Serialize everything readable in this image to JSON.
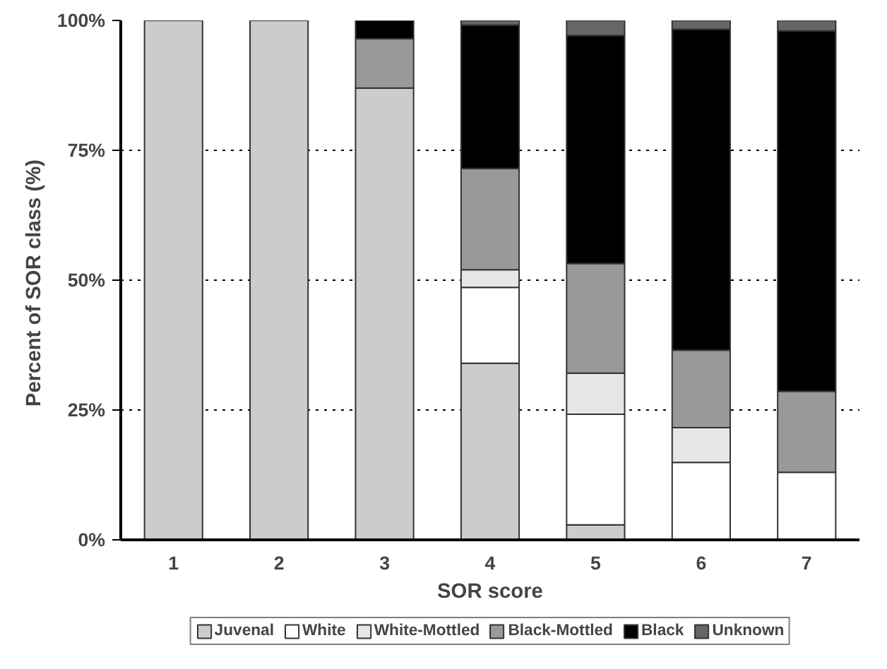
{
  "chart_data": {
    "type": "bar",
    "stacked": true,
    "xlabel": "SOR score",
    "ylabel": "Percent  of SOR class (%)",
    "categories": [
      "1",
      "2",
      "3",
      "4",
      "5",
      "6",
      "7"
    ],
    "series": [
      {
        "name": "Juvenal",
        "color": "#cccccc",
        "values": [
          100,
          100,
          87,
          34,
          2.9,
          0,
          0
        ]
      },
      {
        "name": "White",
        "color": "#ffffff",
        "values": [
          0,
          0,
          0,
          14.6,
          21.3,
          14.9,
          13
        ]
      },
      {
        "name": "White-Mottled",
        "color": "#e6e6e6",
        "values": [
          0,
          0,
          0,
          3.4,
          7.9,
          6.7,
          0
        ]
      },
      {
        "name": "Black-Mottled",
        "color": "#999999",
        "values": [
          0,
          0,
          9.5,
          19.5,
          21.1,
          14.9,
          15.6
        ]
      },
      {
        "name": "Black",
        "color": "#000000",
        "values": [
          0,
          0,
          3.5,
          27.6,
          43.9,
          61.8,
          69.4
        ]
      },
      {
        "name": "Unknown",
        "color": "#666666",
        "values": [
          0,
          0,
          0,
          0.9,
          2.9,
          1.7,
          2
        ]
      }
    ],
    "ylim": [
      0,
      100
    ],
    "yticks": [
      {
        "value": 0,
        "label": "0%"
      },
      {
        "value": 25,
        "label": "25%"
      },
      {
        "value": 50,
        "label": "50%"
      },
      {
        "value": 75,
        "label": "75%"
      },
      {
        "value": 100,
        "label": "100%"
      }
    ],
    "grid": "y",
    "legend": "bottom"
  }
}
